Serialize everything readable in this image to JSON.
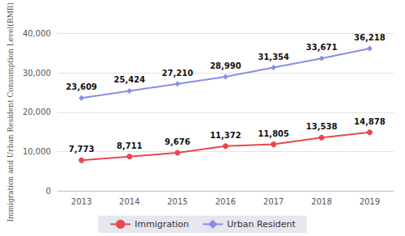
{
  "chart_data": {
    "type": "line",
    "y_label": "Immigration and Urban Resident Consumption Level(RMB)",
    "categories": [
      "2013",
      "2014",
      "2015",
      "2016",
      "2017",
      "2018",
      "2019"
    ],
    "series": [
      {
        "name": "Immigration",
        "color": "#e8474f",
        "marker": "circle",
        "values": [
          7773,
          8711,
          9676,
          11372,
          11805,
          13538,
          14878
        ],
        "value_labels": [
          "7,773",
          "8,711",
          "9,676",
          "11,372",
          "11,805",
          "13,538",
          "14,878"
        ]
      },
      {
        "name": "Urban Resident",
        "color": "#8a8ee6",
        "marker": "diamond",
        "values": [
          23609,
          25424,
          27210,
          28990,
          31354,
          33671,
          36218
        ],
        "value_labels": [
          "23,609",
          "25,424",
          "27,210",
          "28,990",
          "31,354",
          "33,671",
          "36,218"
        ]
      }
    ],
    "ylim": [
      0,
      40000
    ],
    "yticks": [
      0,
      {
        "value": 10000,
        "label": "10,000"
      },
      {
        "value": 20000,
        "label": "20,000"
      },
      {
        "value": 30000,
        "label": "30,000"
      },
      {
        "value": 40000,
        "label": "40,000"
      }
    ],
    "grid": true,
    "data_labels": true,
    "legend": "bottom"
  }
}
